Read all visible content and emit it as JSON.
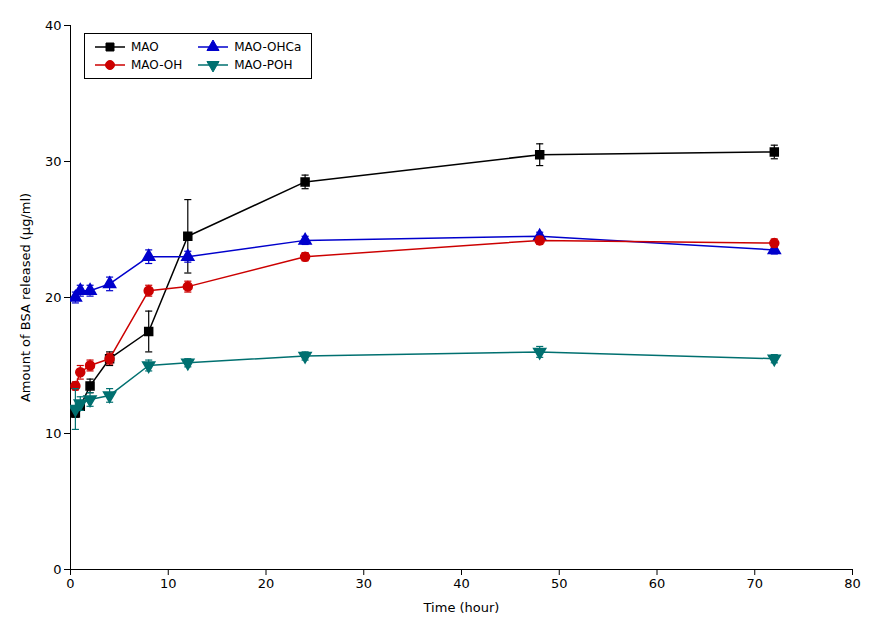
{
  "chart_data": {
    "type": "line",
    "x": [
      0.5,
      1,
      2,
      4,
      8,
      12,
      24,
      48,
      72
    ],
    "xlabel": "Time (hour)",
    "ylabel": "Amount of BSA released (μg/ml)",
    "xlim": [
      0,
      80
    ],
    "ylim": [
      0,
      40
    ],
    "xticks": [
      0,
      10,
      20,
      30,
      40,
      50,
      60,
      70,
      80
    ],
    "yticks": [
      0,
      10,
      20,
      30,
      40
    ],
    "grid": false,
    "legend": "upper left",
    "series": [
      {
        "name": "MAO",
        "color": "#000000",
        "marker": "square",
        "line_style": "solid",
        "values": [
          11.5,
          12.0,
          13.5,
          15.5,
          17.5,
          24.5,
          28.5,
          30.5,
          30.7
        ],
        "yerr": [
          0.3,
          0.3,
          0.5,
          0.5,
          1.5,
          2.7,
          0.5,
          0.8,
          0.5
        ]
      },
      {
        "name": "MAO-OHCa",
        "color": "#0000cc",
        "marker": "triangle-up",
        "line_style": "solid",
        "values": [
          20.0,
          20.5,
          20.5,
          21.0,
          23.0,
          23.0,
          24.2,
          24.5,
          23.5
        ],
        "yerr": [
          0.4,
          0.4,
          0.4,
          0.5,
          0.5,
          0.4,
          0.3,
          0.3,
          0.3
        ]
      },
      {
        "name": "MAO-OH",
        "color": "#cc0000",
        "marker": "circle",
        "line_style": "solid",
        "values": [
          13.5,
          14.5,
          15.0,
          15.5,
          20.5,
          20.8,
          23.0,
          24.2,
          24.0
        ],
        "yerr": [
          0.3,
          0.5,
          0.4,
          0.4,
          0.4,
          0.4,
          0.3,
          0.3,
          0.3
        ]
      },
      {
        "name": "MAO-POH",
        "color": "#007070",
        "marker": "triangle-down",
        "line_style": "solid",
        "values": [
          11.8,
          12.2,
          12.5,
          12.8,
          15.0,
          15.2,
          15.7,
          16.0,
          15.5
        ],
        "yerr": [
          1.5,
          0.5,
          0.5,
          0.5,
          0.4,
          0.3,
          0.3,
          0.4,
          0.3
        ]
      }
    ]
  }
}
